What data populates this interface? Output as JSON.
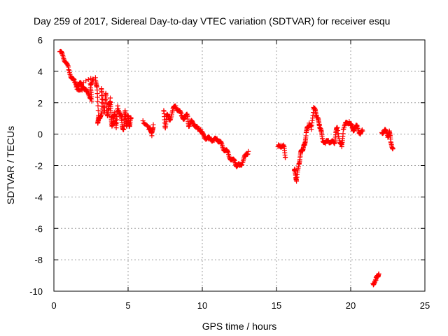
{
  "chart_data": {
    "type": "scatter",
    "title": "Day 259 of 2017, Sidereal Day-to-day VTEC variation (SDTVAR) for receiver esqu",
    "xlabel": "GPS time / hours",
    "ylabel": "SDTVAR / TECUs",
    "xlim": [
      0,
      25
    ],
    "ylim": [
      -10,
      6
    ],
    "xticks": [
      0,
      5,
      10,
      15,
      20,
      25
    ],
    "yticks": [
      -10,
      -8,
      -6,
      -4,
      -2,
      0,
      2,
      4,
      6
    ],
    "grid": true,
    "marker": "plus",
    "color": "#ff0000",
    "series": [
      {
        "name": "SDTVAR",
        "points": [
          [
            0.4,
            5.25
          ],
          [
            0.6,
            5.0
          ],
          [
            0.8,
            4.6
          ],
          [
            1.0,
            4.1
          ],
          [
            1.2,
            3.6
          ],
          [
            1.4,
            3.3
          ],
          [
            1.6,
            3.1
          ],
          [
            1.8,
            3.2
          ],
          [
            2.0,
            3.0
          ],
          [
            2.2,
            2.7
          ],
          [
            2.4,
            2.5
          ],
          [
            2.55,
            2.1
          ],
          [
            2.45,
            3.2
          ],
          [
            2.65,
            3.5
          ],
          [
            1.5,
            3.0
          ],
          [
            1.9,
            2.8
          ],
          [
            2.8,
            3.6
          ],
          [
            2.9,
            3.0
          ],
          [
            3.0,
            1.2
          ],
          [
            2.95,
            0.7
          ],
          [
            3.1,
            1.0
          ],
          [
            3.25,
            1.6
          ],
          [
            3.2,
            2.9
          ],
          [
            3.4,
            1.4
          ],
          [
            3.5,
            2.6
          ],
          [
            3.6,
            1.2
          ],
          [
            3.7,
            1.6
          ],
          [
            3.8,
            2.3
          ],
          [
            3.85,
            1.1
          ],
          [
            3.9,
            0.6
          ],
          [
            4.0,
            0.8
          ],
          [
            4.1,
            1.4
          ],
          [
            4.2,
            0.4
          ],
          [
            4.3,
            1.8
          ],
          [
            4.5,
            1.2
          ],
          [
            4.6,
            0.6
          ],
          [
            4.7,
            0.3
          ],
          [
            4.8,
            1.5
          ],
          [
            4.9,
            0.5
          ],
          [
            5.0,
            1.2
          ],
          [
            5.1,
            0.5
          ],
          [
            5.2,
            1.0
          ],
          [
            6.0,
            0.85
          ],
          [
            6.4,
            0.3
          ],
          [
            6.5,
            0.4
          ],
          [
            6.6,
            -0.1
          ],
          [
            6.7,
            0.6
          ],
          [
            7.4,
            1.5
          ],
          [
            7.5,
            0.4
          ],
          [
            7.6,
            1.2
          ],
          [
            7.8,
            0.9
          ],
          [
            8.0,
            1.5
          ],
          [
            8.2,
            1.8
          ],
          [
            8.4,
            1.5
          ],
          [
            8.6,
            1.2
          ],
          [
            8.8,
            1.0
          ],
          [
            9.0,
            1.2
          ],
          [
            9.1,
            0.5
          ],
          [
            9.3,
            0.8
          ],
          [
            9.5,
            0.6
          ],
          [
            9.7,
            0.3
          ],
          [
            9.9,
            0.3
          ],
          [
            10.0,
            0.0
          ],
          [
            10.2,
            -0.2
          ],
          [
            10.4,
            -0.3
          ],
          [
            10.6,
            -0.3
          ],
          [
            10.8,
            -0.4
          ],
          [
            11.0,
            -0.3
          ],
          [
            11.2,
            -0.5
          ],
          [
            11.4,
            -0.9
          ],
          [
            11.6,
            -1.0
          ],
          [
            11.8,
            -1.4
          ],
          [
            12.0,
            -1.6
          ],
          [
            12.2,
            -1.8
          ],
          [
            12.35,
            -2.0
          ],
          [
            12.5,
            -2.0
          ],
          [
            12.7,
            -1.8
          ],
          [
            12.9,
            -1.4
          ],
          [
            13.1,
            -1.1
          ],
          [
            15.1,
            -0.8
          ],
          [
            15.3,
            -0.7
          ],
          [
            15.5,
            -0.8
          ],
          [
            15.6,
            -1.5
          ],
          [
            16.2,
            -2.3
          ],
          [
            16.3,
            -2.6
          ],
          [
            16.35,
            -3.0
          ],
          [
            16.5,
            -1.9
          ],
          [
            16.6,
            -1.4
          ],
          [
            16.7,
            -1.0
          ],
          [
            16.8,
            -0.9
          ],
          [
            16.9,
            -0.7
          ],
          [
            17.0,
            0.1
          ],
          [
            17.1,
            0.4
          ],
          [
            17.2,
            0.7
          ],
          [
            17.35,
            0.3
          ],
          [
            17.5,
            1.7
          ],
          [
            17.6,
            1.5
          ],
          [
            17.7,
            1.2
          ],
          [
            17.8,
            0.9
          ],
          [
            17.9,
            0.6
          ],
          [
            18.0,
            0.2
          ],
          [
            18.1,
            -0.3
          ],
          [
            18.3,
            -0.6
          ],
          [
            18.5,
            -0.4
          ],
          [
            18.7,
            -0.5
          ],
          [
            18.9,
            -0.6
          ],
          [
            19.0,
            0.1
          ],
          [
            19.1,
            0.4
          ],
          [
            19.3,
            -0.6
          ],
          [
            19.4,
            -0.8
          ],
          [
            19.5,
            0.3
          ],
          [
            19.7,
            0.7
          ],
          [
            19.9,
            0.8
          ],
          [
            20.1,
            0.4
          ],
          [
            20.2,
            0.3
          ],
          [
            20.4,
            0.5
          ],
          [
            20.6,
            0.1
          ],
          [
            20.8,
            0.2
          ],
          [
            21.5,
            -9.5
          ],
          [
            21.7,
            -9.3
          ],
          [
            21.8,
            -9.0
          ],
          [
            21.9,
            -8.9
          ],
          [
            22.1,
            0.1
          ],
          [
            22.3,
            0.3
          ],
          [
            22.5,
            -0.2
          ],
          [
            22.6,
            0.2
          ],
          [
            22.7,
            -0.5
          ],
          [
            22.85,
            -0.9
          ]
        ]
      }
    ]
  }
}
